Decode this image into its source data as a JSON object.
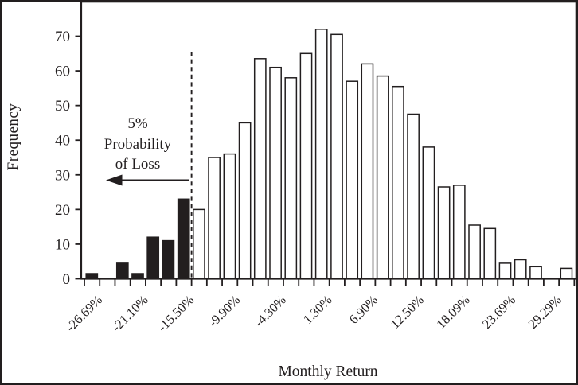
{
  "figure_title": "",
  "chart_data": {
    "type": "bar",
    "title": "",
    "xlabel": "Monthly Return",
    "ylabel": "Frequency",
    "ylim": [
      0,
      80
    ],
    "yticks": [
      0,
      10,
      20,
      30,
      40,
      50,
      60,
      70
    ],
    "bin_count": 32,
    "x_tick_count": 33,
    "x_tick_labels": [
      "-26.69%",
      "-21.10%",
      "-15.50%",
      "-9.90%",
      "-4.30%",
      "1.30%",
      "6.90%",
      "12.50%",
      "18.09%",
      "23.69%",
      "29.29%"
    ],
    "x_tick_label_every_n_ticks": 3,
    "x_tick_label_first_tick_index": 1,
    "values": [
      1.5,
      0,
      4.5,
      1.5,
      12,
      11,
      23,
      20,
      35,
      36,
      45,
      63.5,
      61,
      58,
      65,
      72,
      70.5,
      57,
      62,
      58.5,
      55.5,
      47.5,
      38,
      26.5,
      27,
      15.5,
      14.5,
      4.5,
      5.5,
      3.5,
      0,
      3
    ],
    "loss_bar_count": 7,
    "divider_after_bin": 7,
    "annotation": {
      "line1": "5%",
      "line2": "Probability",
      "line3": "of Loss",
      "arrow_direction": "left"
    },
    "legend": "none",
    "grid": false,
    "colors": {
      "loss_bar_fill": "#221e1f",
      "bar_fill": "#ffffff",
      "ink": "#221e1f",
      "background": "#ffffff"
    }
  }
}
